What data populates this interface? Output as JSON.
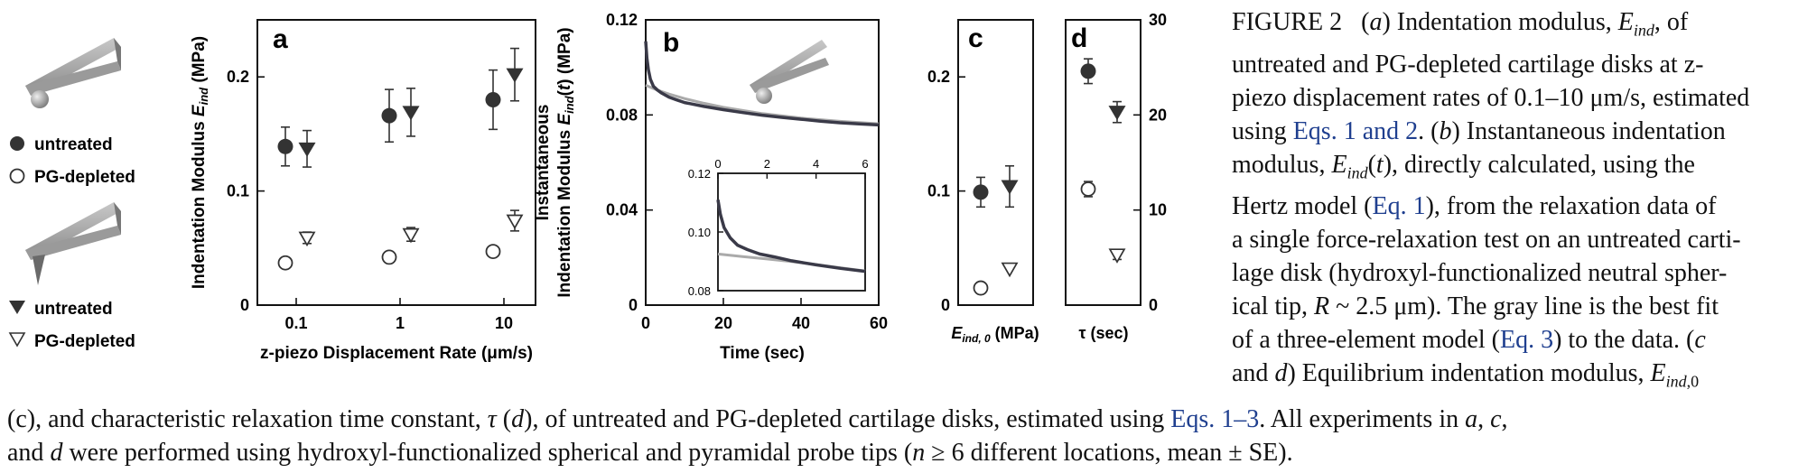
{
  "legend": {
    "spherical": {
      "untreated": "untreated",
      "pg_depleted": "PG-depleted"
    },
    "pyramidal": {
      "untreated": "untreated",
      "pg_depleted": "PG-depleted"
    }
  },
  "panel_letters": {
    "a": "a",
    "b": "b",
    "c": "c",
    "d": "d"
  },
  "colors": {
    "filled": "#333333",
    "gray_fit": "#aaaaaa",
    "data_line": "#3a3a48",
    "caption_link": "#1f3f8f"
  },
  "caption": {
    "figure": "FIGURE 2",
    "right_lines": [
      "(a) Indentation modulus, Eind, of",
      "untreated and PG-depleted cartilage disks at z-",
      "piezo displacement rates of 0.1–10 μm/s, estimated",
      "using Eqs. 1 and 2. (b) Instantaneous indentation",
      "modulus, Eind(t), directly calculated, using the",
      "Hertz model (Eq. 1), from the relaxation data of",
      "a single force-relaxation test on an untreated carti-",
      "lage disk (hydroxyl-functionalized neutral spher-",
      "ical tip, R ~ 2.5 μm). The gray line is the best fit",
      "of a three-element model (Eq. 3) to the data. (c",
      "and d) Equilibrium indentation modulus, Eind,0"
    ],
    "bottom_lines": [
      "(c), and characteristic relaxation time constant, τ (d), of untreated and PG-depleted cartilage disks, estimated using Eqs. 1–3. All experiments in a, c,",
      "and d were performed using hydroxyl-functionalized spherical and pyramidal probe tips (n ≥ 6 different locations, mean ± SE)."
    ]
  },
  "chart_data": [
    {
      "panel": "a",
      "type": "scatter",
      "xlabel": "z-piezo Displacement Rate (μm/s)",
      "ylabel": "Indentation Modulus Eind (MPa)",
      "x_scale": "log",
      "categories": [
        "0.1",
        "1",
        "10"
      ],
      "ylim": [
        0,
        0.25
      ],
      "yticks": [
        0,
        0.1,
        0.2
      ],
      "ytick_labels": [
        "0",
        "0.1",
        "0.2"
      ],
      "series": [
        {
          "tip": "spherical",
          "treatment": "untreated",
          "marker": "filled-circle",
          "x": [
            0.1,
            1,
            10
          ],
          "y": [
            0.139,
            0.166,
            0.18
          ],
          "err": [
            0.017,
            0.023,
            0.026
          ]
        },
        {
          "tip": "pyramidal",
          "treatment": "untreated",
          "marker": "filled-triangle-down",
          "x": [
            0.1,
            1,
            10
          ],
          "y": [
            0.137,
            0.169,
            0.202
          ],
          "err": [
            0.016,
            0.021,
            0.023
          ]
        },
        {
          "tip": "spherical",
          "treatment": "PG-depleted",
          "marker": "open-circle",
          "x": [
            0.1,
            1,
            10
          ],
          "y": [
            0.037,
            0.042,
            0.047
          ],
          "err": [
            0,
            0,
            0
          ]
        },
        {
          "tip": "pyramidal",
          "treatment": "PG-depleted",
          "marker": "open-triangle-down",
          "x": [
            0.1,
            1,
            10
          ],
          "y": [
            0.059,
            0.062,
            0.074
          ],
          "err": [
            0.005,
            0.006,
            0.009
          ]
        }
      ]
    },
    {
      "panel": "b",
      "type": "line",
      "xlabel": "Time (sec)",
      "ylabel_line1": "Instantaneous",
      "ylabel_line2": "Indentation Modulus Eind(t) (MPa)",
      "xlim": [
        0,
        60
      ],
      "ylim": [
        0,
        0.12
      ],
      "xticks": [
        0,
        20,
        40,
        60
      ],
      "xtick_labels": [
        "0",
        "20",
        "40",
        "60"
      ],
      "yticks": [
        0,
        0.04,
        0.08,
        0.12
      ],
      "ytick_labels": [
        "0",
        "0.04",
        "0.08",
        "0.12"
      ],
      "series": [
        {
          "name": "data",
          "x": [
            0,
            0.3,
            0.7,
            1.2,
            2,
            3,
            4,
            6,
            8,
            10,
            15,
            20,
            25,
            30,
            35,
            40,
            45,
            50,
            55,
            60
          ],
          "y": [
            0.111,
            0.104,
            0.099,
            0.095,
            0.092,
            0.0905,
            0.0893,
            0.0875,
            0.0863,
            0.0852,
            0.0836,
            0.0822,
            0.081,
            0.0799,
            0.079,
            0.0782,
            0.0774,
            0.0767,
            0.0762,
            0.0758
          ]
        },
        {
          "name": "three-element fit",
          "x": [
            0,
            2,
            4,
            6,
            10,
            15,
            20,
            30,
            40,
            50,
            60
          ],
          "y": [
            0.0925,
            0.0911,
            0.0899,
            0.0888,
            0.0869,
            0.0849,
            0.0832,
            0.0806,
            0.0787,
            0.0773,
            0.0763
          ]
        }
      ],
      "inset": {
        "xlim": [
          0,
          6
        ],
        "ylim": [
          0.08,
          0.12
        ],
        "xticks": [
          0,
          2,
          4,
          6
        ],
        "xtick_labels": [
          "0",
          "2",
          "4",
          "6"
        ],
        "yticks": [
          0.08,
          0.1,
          0.12
        ],
        "ytick_labels": [
          "0.08",
          "0.10",
          "0.12"
        ],
        "series": [
          {
            "name": "data",
            "x": [
              0,
              0.1,
              0.25,
              0.5,
              0.8,
              1.2,
              1.7,
              2.3,
              3,
              4,
              5,
              6
            ],
            "y": [
              0.111,
              0.106,
              0.1015,
              0.098,
              0.0955,
              0.094,
              0.0925,
              0.0915,
              0.0902,
              0.0888,
              0.0876,
              0.0866
            ]
          },
          {
            "name": "three-element fit",
            "x": [
              0,
              1,
              2,
              3,
              4,
              5,
              6
            ],
            "y": [
              0.0925,
              0.0916,
              0.0908,
              0.0899,
              0.0889,
              0.0878,
              0.0867
            ]
          }
        ]
      }
    },
    {
      "panel": "c",
      "type": "scatter",
      "xlabel": "Eind, 0 (MPa)",
      "ylim": [
        0,
        0.25
      ],
      "yticks": [
        0,
        0.1,
        0.2
      ],
      "ytick_labels": [
        "0",
        "0.1",
        "0.2"
      ],
      "series": [
        {
          "tip": "spherical",
          "treatment": "untreated",
          "marker": "filled-circle",
          "slot": 0,
          "y": 0.099,
          "err": 0.013
        },
        {
          "tip": "pyramidal",
          "treatment": "untreated",
          "marker": "filled-triangle-down",
          "slot": 1,
          "y": 0.104,
          "err": 0.018
        },
        {
          "tip": "spherical",
          "treatment": "PG-depleted",
          "marker": "open-circle",
          "slot": 0,
          "y": 0.015,
          "err": 0
        },
        {
          "tip": "pyramidal",
          "treatment": "PG-depleted",
          "marker": "open-triangle-down",
          "slot": 1,
          "y": 0.032,
          "err": 0
        }
      ]
    },
    {
      "panel": "d",
      "type": "scatter",
      "xlabel": "τ (sec)",
      "ylim": [
        0,
        30
      ],
      "yticks": [
        0,
        10,
        20,
        30
      ],
      "ytick_labels": [
        "0",
        "10",
        "20",
        "30"
      ],
      "series": [
        {
          "tip": "spherical",
          "treatment": "untreated",
          "marker": "filled-circle",
          "slot": 0,
          "y": 24.6,
          "err": 1.3
        },
        {
          "tip": "pyramidal",
          "treatment": "untreated",
          "marker": "filled-triangle-down",
          "slot": 1,
          "y": 20.3,
          "err": 1.1
        },
        {
          "tip": "spherical",
          "treatment": "PG-depleted",
          "marker": "open-circle",
          "slot": 0,
          "y": 12.2,
          "err": 0.8
        },
        {
          "tip": "pyramidal",
          "treatment": "PG-depleted",
          "marker": "open-triangle-down",
          "slot": 1,
          "y": 5.3,
          "err": 0.5
        }
      ]
    }
  ]
}
